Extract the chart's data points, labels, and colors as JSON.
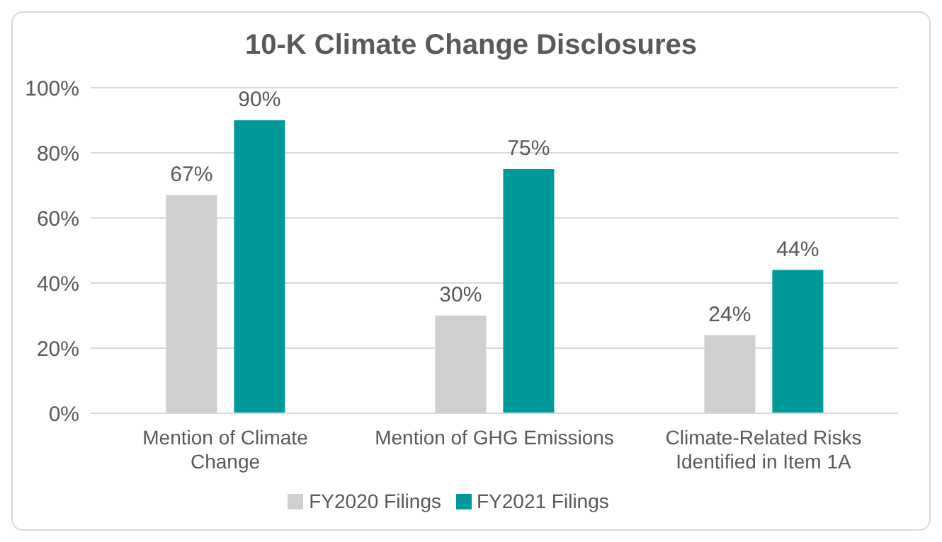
{
  "chart_data": {
    "type": "bar",
    "title": "10-K Climate Change Disclosures",
    "categories": [
      "Mention of Climate Change",
      "Mention of GHG Emissions",
      "Climate-Related Risks Identified in Item 1A"
    ],
    "series": [
      {
        "name": "FY2020 Filings",
        "color": "#d0cece",
        "values": [
          67,
          30,
          24
        ],
        "value_labels": [
          "67%",
          "30%",
          "24%"
        ]
      },
      {
        "name": "FY2021 Filings",
        "color": "#009999",
        "values": [
          90,
          75,
          44
        ],
        "value_labels": [
          "90%",
          "75%",
          "44%"
        ]
      }
    ],
    "ylim": [
      0,
      100
    ],
    "yticks": [
      {
        "value": 0,
        "label": "0%"
      },
      {
        "value": 20,
        "label": "20%"
      },
      {
        "value": 40,
        "label": "40%"
      },
      {
        "value": 60,
        "label": "60%"
      },
      {
        "value": 80,
        "label": "80%"
      },
      {
        "value": 100,
        "label": "100%"
      }
    ],
    "grid": "y",
    "legend": "bottom"
  }
}
